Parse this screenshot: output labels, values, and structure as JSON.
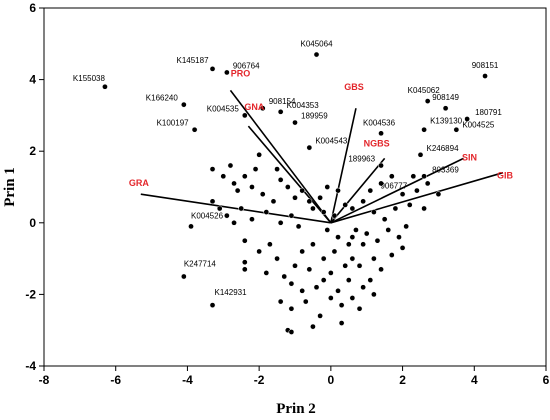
{
  "chart_data": {
    "type": "scatter",
    "xlabel": "Prin 2",
    "ylabel": "Prin 1",
    "xlim": [
      -8,
      6
    ],
    "ylim": [
      -4,
      6
    ],
    "xticks": [
      -8,
      -6,
      -4,
      -2,
      0,
      2,
      4,
      6
    ],
    "yticks": [
      -4,
      -2,
      0,
      2,
      4,
      6
    ],
    "grid": false,
    "vector_color": "#e3262b",
    "origin": [
      0,
      0
    ],
    "vectors": [
      {
        "label": "PRO",
        "x": -2.8,
        "y": 3.7
      },
      {
        "label": "GNA",
        "x": -2.3,
        "y": 2.7
      },
      {
        "label": "GRA",
        "x": -5.3,
        "y": 0.8
      },
      {
        "label": "GBS",
        "x": 0.7,
        "y": 3.2
      },
      {
        "label": "NGBS",
        "x": 1.5,
        "y": 1.8
      },
      {
        "label": "SIN",
        "x": 3.7,
        "y": 1.8
      },
      {
        "label": "GIB",
        "x": 4.8,
        "y": 1.4
      }
    ],
    "labeled_points": [
      {
        "label": "K155038",
        "x": -6.3,
        "y": 3.8
      },
      {
        "label": "K145187",
        "x": -3.3,
        "y": 4.3
      },
      {
        "label": "906764",
        "x": -2.9,
        "y": 4.2
      },
      {
        "label": "K045064",
        "x": -0.4,
        "y": 4.7
      },
      {
        "label": "908151",
        "x": 4.3,
        "y": 4.1
      },
      {
        "label": "K166240",
        "x": -4.1,
        "y": 3.3
      },
      {
        "label": "K004535",
        "x": -2.4,
        "y": 3.0
      },
      {
        "label": "908154",
        "x": -1.9,
        "y": 3.2
      },
      {
        "label": "K004353",
        "x": -1.4,
        "y": 3.1
      },
      {
        "label": "189959",
        "x": -1.0,
        "y": 2.8
      },
      {
        "label": "K100197",
        "x": -3.8,
        "y": 2.6
      },
      {
        "label": "K045062",
        "x": 2.7,
        "y": 3.4
      },
      {
        "label": "908149",
        "x": 3.2,
        "y": 3.2
      },
      {
        "label": "180791",
        "x": 3.8,
        "y": 2.9
      },
      {
        "label": "K004536",
        "x": 1.4,
        "y": 2.5
      },
      {
        "label": "K139130",
        "x": 2.6,
        "y": 2.6
      },
      {
        "label": "K004525",
        "x": 3.5,
        "y": 2.6
      },
      {
        "label": "K004543",
        "x": -0.6,
        "y": 2.1
      },
      {
        "label": "K246894",
        "x": 2.5,
        "y": 1.9
      },
      {
        "label": "189963",
        "x": 1.4,
        "y": 1.6
      },
      {
        "label": "906777",
        "x": 1.7,
        "y": 1.3
      },
      {
        "label": "803369",
        "x": 2.6,
        "y": 1.3
      },
      {
        "label": "K004526",
        "x": -3.9,
        "y": -0.1
      },
      {
        "label": "K247714",
        "x": -4.1,
        "y": -1.5
      },
      {
        "label": "K142931",
        "x": -3.3,
        "y": -2.3
      }
    ],
    "points": [
      [
        -3.3,
        1.5
      ],
      [
        -3.0,
        1.3
      ],
      [
        -2.8,
        1.6
      ],
      [
        -2.7,
        1.1
      ],
      [
        -2.6,
        0.9
      ],
      [
        -2.4,
        1.3
      ],
      [
        -2.1,
        1.5
      ],
      [
        -2.2,
        1.0
      ],
      [
        -1.9,
        0.8
      ],
      [
        -1.5,
        1.5
      ],
      [
        -1.4,
        1.2
      ],
      [
        -1.6,
        0.6
      ],
      [
        -1.2,
        1.0
      ],
      [
        -1.0,
        0.7
      ],
      [
        -0.8,
        0.9
      ],
      [
        -0.6,
        0.6
      ],
      [
        -0.5,
        0.4
      ],
      [
        -0.3,
        0.7
      ],
      [
        -0.2,
        0.3
      ],
      [
        -3.3,
        0.6
      ],
      [
        -3.1,
        0.4
      ],
      [
        -2.9,
        0.2
      ],
      [
        -2.5,
        0.4
      ],
      [
        -2.2,
        0.1
      ],
      [
        -1.8,
        0.3
      ],
      [
        -1.1,
        0.2
      ],
      [
        -0.9,
        -0.1
      ],
      [
        0.1,
        0.2
      ],
      [
        0.4,
        0.5
      ],
      [
        0.6,
        0.4
      ],
      [
        0.9,
        0.6
      ],
      [
        1.1,
        0.9
      ],
      [
        1.2,
        0.3
      ],
      [
        1.5,
        0.1
      ],
      [
        1.8,
        0.4
      ],
      [
        2.0,
        0.8
      ],
      [
        2.2,
        0.5
      ],
      [
        2.4,
        0.9
      ],
      [
        2.7,
        1.1
      ],
      [
        2.6,
        0.4
      ],
      [
        3.0,
        0.8
      ],
      [
        1.6,
        -0.2
      ],
      [
        1.9,
        -0.4
      ],
      [
        2.1,
        -0.1
      ],
      [
        2.0,
        -0.7
      ],
      [
        1.3,
        -0.5
      ],
      [
        1.0,
        -0.3
      ],
      [
        0.7,
        -0.2
      ],
      [
        0.5,
        -0.6
      ],
      [
        0.2,
        -0.4
      ],
      [
        0.1,
        -0.8
      ],
      [
        -0.2,
        -1.0
      ],
      [
        -0.5,
        -0.6
      ],
      [
        -0.8,
        -0.8
      ],
      [
        -1.0,
        -1.2
      ],
      [
        -1.3,
        -1.5
      ],
      [
        -1.5,
        -1.0
      ],
      [
        -1.7,
        -0.6
      ],
      [
        -2.0,
        -0.8
      ],
      [
        -2.4,
        -0.5
      ],
      [
        -2.4,
        -1.1
      ],
      [
        -2.4,
        -1.3
      ],
      [
        -1.8,
        -1.4
      ],
      [
        -1.1,
        -1.7
      ],
      [
        -0.6,
        -1.3
      ],
      [
        -0.2,
        -1.6
      ],
      [
        0.2,
        -1.9
      ],
      [
        0.5,
        -1.6
      ],
      [
        0.8,
        -1.2
      ],
      [
        1.2,
        -1.0
      ],
      [
        1.4,
        -1.3
      ],
      [
        0.9,
        -1.8
      ],
      [
        0.6,
        -2.1
      ],
      [
        0.3,
        -2.3
      ],
      [
        0.0,
        -2.1
      ],
      [
        -0.3,
        -2.6
      ],
      [
        -0.7,
        -2.2
      ],
      [
        -1.1,
        -2.4
      ],
      [
        -1.4,
        -2.2
      ],
      [
        -1.2,
        -3.0
      ],
      [
        -1.1,
        -3.05
      ],
      [
        -0.5,
        -2.9
      ],
      [
        0.9,
        -0.6
      ],
      [
        0.6,
        -1.0
      ],
      [
        1.7,
        -0.9
      ],
      [
        1.1,
        -1.6
      ],
      [
        0.4,
        -1.2
      ],
      [
        -0.1,
        -0.2
      ],
      [
        -1.4,
        0.0
      ],
      [
        -2.7,
        0.0
      ],
      [
        -2.0,
        1.9
      ],
      [
        -0.1,
        1.0
      ],
      [
        0.2,
        0.9
      ],
      [
        1.4,
        1.1
      ],
      [
        2.3,
        1.3
      ],
      [
        0.8,
        -2.4
      ],
      [
        0.3,
        -2.8
      ],
      [
        -0.8,
        -1.9
      ],
      [
        1.2,
        -2.0
      ],
      [
        0.6,
        -0.4
      ],
      [
        0.0,
        -1.4
      ],
      [
        -0.4,
        -1.8
      ]
    ]
  }
}
